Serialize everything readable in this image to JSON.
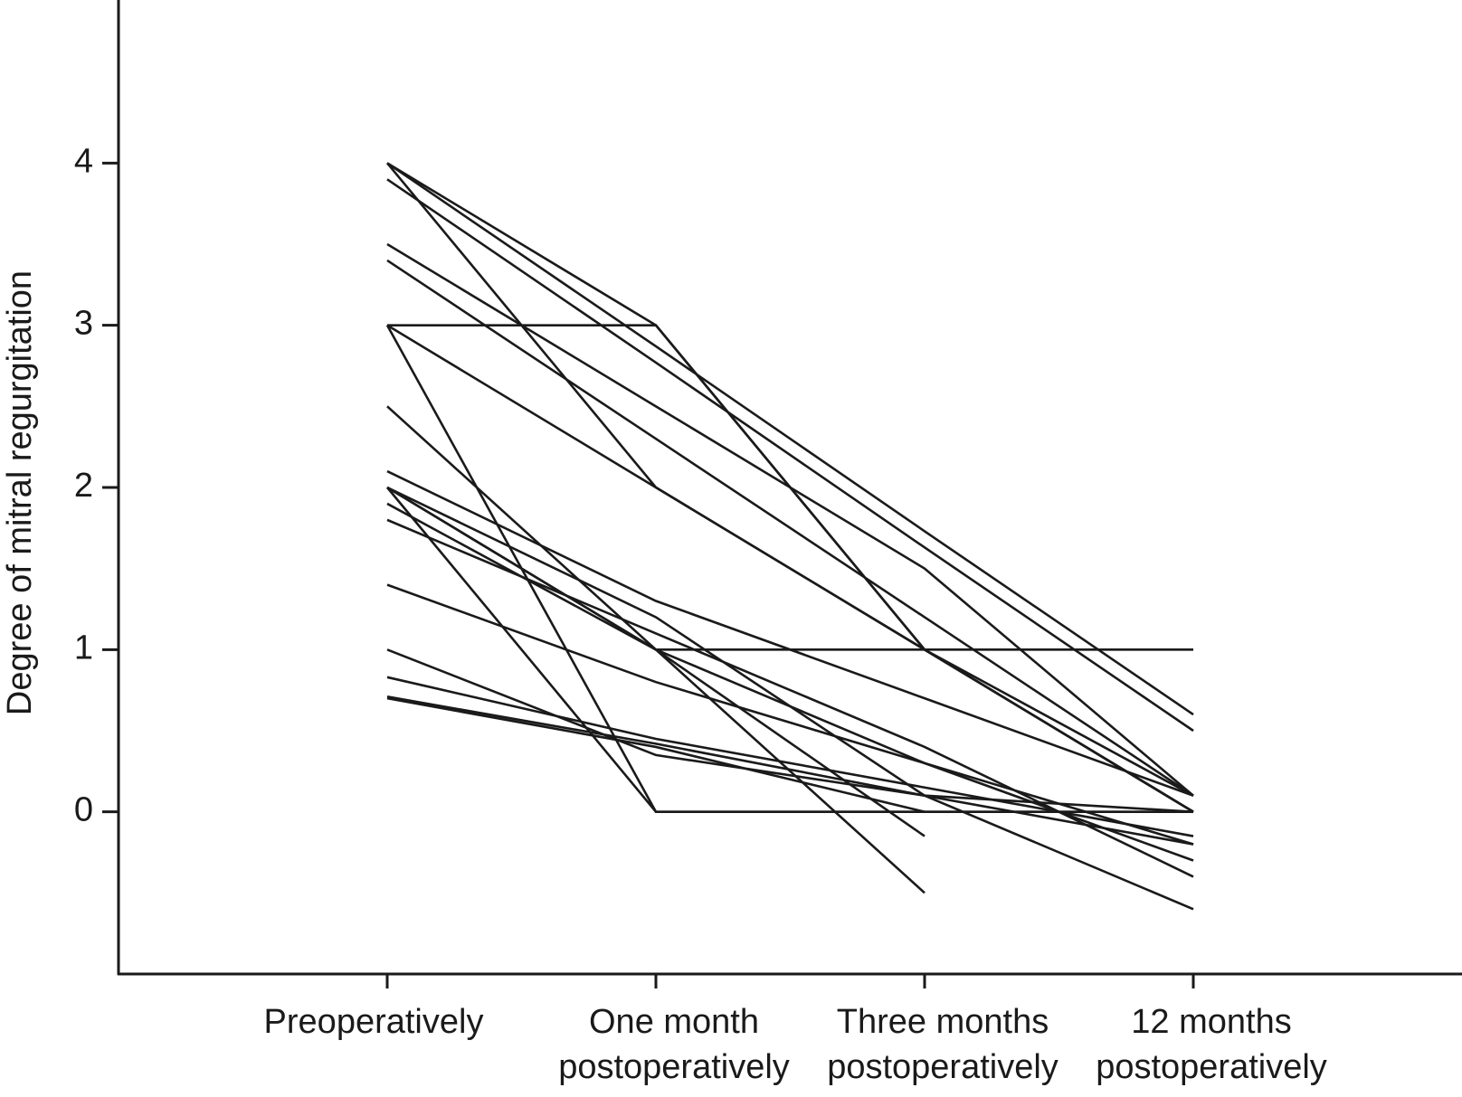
{
  "chart_data": {
    "type": "line",
    "y_label": "Degree of mitral regurgitation",
    "categories": [
      "Preoperatively",
      "One month\npostoperatively",
      "Three months\npostoperatively",
      "12 months\npostoperatively"
    ],
    "color": "#1a1a1a",
    "ylim": [
      -1,
      5
    ],
    "yticks": [
      0,
      1,
      2,
      3,
      4
    ],
    "grid": false,
    "series": [
      {
        "values": [
          4.0,
          3.0,
          1.0,
          0.1
        ]
      },
      {
        "values": [
          3.0,
          3.0,
          1.0,
          0.0
        ]
      },
      {
        "values": [
          4.0,
          2.87,
          1.73,
          0.6
        ]
      },
      {
        "values": [
          3.9,
          2.77,
          1.63,
          0.5
        ]
      },
      {
        "values": [
          4.0,
          2.0,
          1.0,
          0.0
        ]
      },
      {
        "values": [
          3.5,
          2.5,
          1.5,
          0.1
        ]
      },
      {
        "values": [
          3.4,
          2.3,
          1.2,
          0.1
        ]
      },
      {
        "values": [
          3.0,
          2.0,
          1.0,
          0.0
        ]
      },
      {
        "values": [
          3.0,
          0,
          0,
          0
        ]
      },
      {
        "values": [
          2.5,
          1.0,
          1.0,
          1.0
        ]
      },
      {
        "values": [
          2.1,
          1.3,
          0.7,
          0.1
        ]
      },
      {
        "values": [
          2.0,
          1.0,
          0.3,
          -0.3
        ]
      },
      {
        "values": [
          1.9,
          1.0,
          -0.15,
          null
        ]
      },
      {
        "values": [
          1.8,
          1.1,
          0.4,
          -0.4
        ]
      },
      {
        "values": [
          2.0,
          1.0,
          -0.5,
          null
        ]
      },
      {
        "values": [
          1.4,
          0.8,
          0.3,
          -0.2
        ]
      },
      {
        "values": [
          1.0,
          0.35,
          0.1,
          -0.6
        ]
      },
      {
        "values": [
          0.83,
          0.45,
          0.15,
          -0.15
        ]
      },
      {
        "values": [
          0.71,
          0.42,
          0.1,
          0.0
        ]
      },
      {
        "values": [
          0.7,
          0.4,
          0.0,
          null
        ]
      },
      {
        "values": [
          2.0,
          1.2,
          0.1,
          -0.2
        ]
      },
      {
        "values": [
          2.0,
          0,
          0,
          0
        ]
      }
    ]
  }
}
